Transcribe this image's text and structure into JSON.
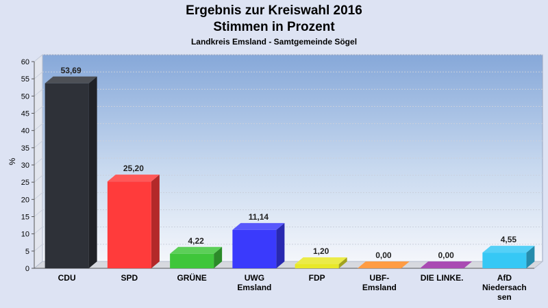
{
  "chart_data": {
    "type": "bar",
    "title": "Ergebnis zur Kreiswahl 2016",
    "subtitle": "Stimmen in Prozent",
    "subtitle2": "Landkreis Emsland - Samtgemeinde Sögel",
    "ylabel": "%",
    "xlabel": "",
    "ylim": [
      0,
      60
    ],
    "yticks": [
      0,
      5,
      10,
      15,
      20,
      25,
      30,
      35,
      40,
      45,
      50,
      55,
      60
    ],
    "categories": [
      "CDU",
      "SPD",
      "GRÜNE",
      "UWG Emsland",
      "FDP",
      "UBF-Emsland",
      "DIE LINKE.",
      "AfD Niedersachsen"
    ],
    "category_lines": [
      [
        "CDU"
      ],
      [
        "SPD"
      ],
      [
        "GRÜNE"
      ],
      [
        "UWG",
        "Emsland"
      ],
      [
        "FDP"
      ],
      [
        "UBF-",
        "Emsland"
      ],
      [
        "DIE LINKE."
      ],
      [
        "AfD",
        "Niedersach",
        "sen"
      ]
    ],
    "values": [
      53.69,
      25.2,
      4.22,
      11.14,
      1.2,
      0.0,
      0.0,
      4.55
    ],
    "value_labels": [
      "53,69",
      "25,20",
      "4,22",
      "11,14",
      "1,20",
      "0,00",
      "0,00",
      "4,55"
    ],
    "colors": [
      "#2e3138",
      "#ff3b3b",
      "#3fc63a",
      "#3a3afc",
      "#e8e829",
      "#ff8a23",
      "#9a2ba5",
      "#36c8f5"
    ],
    "grid": true,
    "legend": "none"
  }
}
